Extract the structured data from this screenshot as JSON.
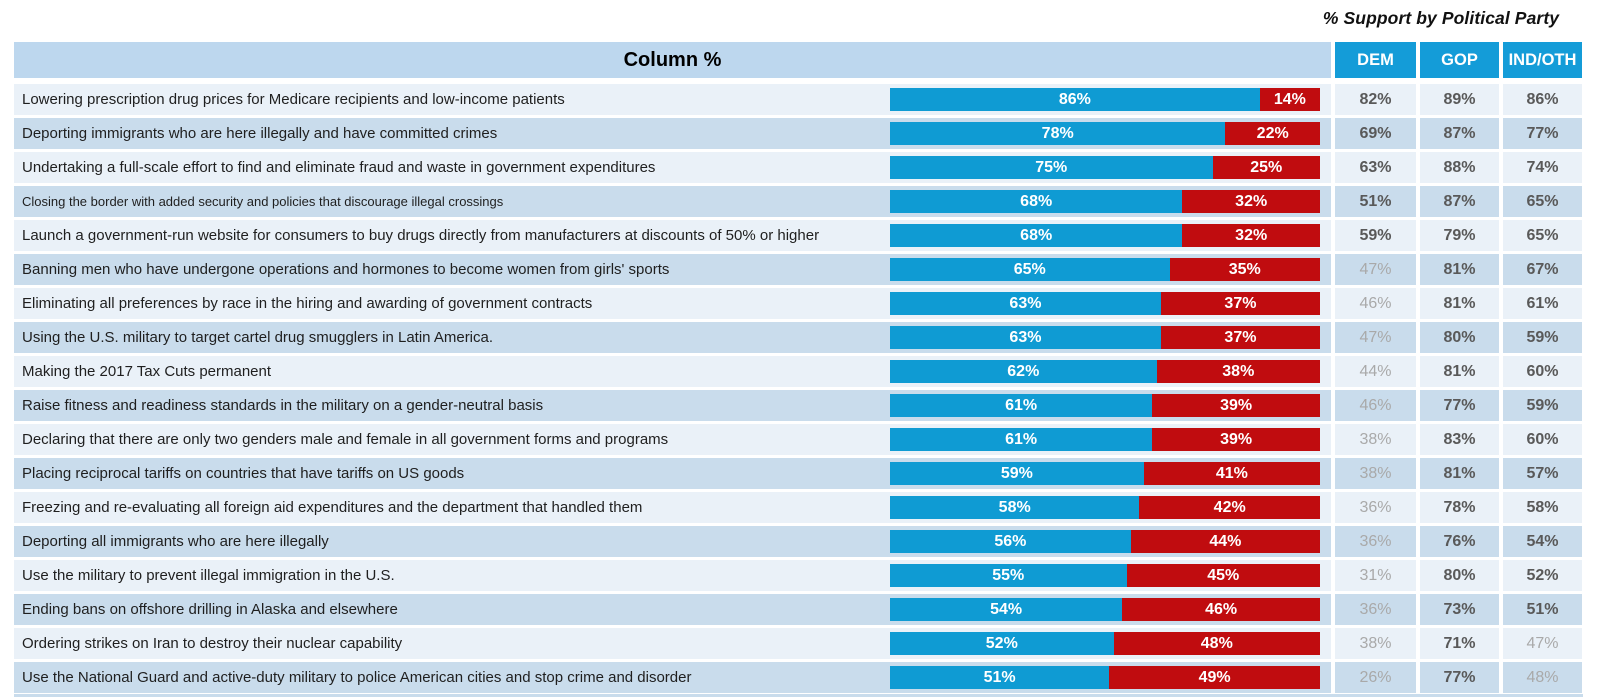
{
  "title": "% Support by Political Party",
  "header": {
    "column_label": "Column %",
    "party_columns": [
      "DEM",
      "GOP",
      "IND/OTH"
    ]
  },
  "colors": {
    "bar_blue": "#0F9BD3",
    "bar_red": "#C00C0F",
    "header_band": "#BDD7EE",
    "party_header_blue": "#149CD8",
    "row_light": "#EAF1F8",
    "row_dark": "#C9DCEC",
    "value_dark": "#595959",
    "value_light": "#A9A9A9"
  },
  "chart_data": {
    "type": "bar",
    "orientation": "horizontal-stacked",
    "title": "% Support by Political Party",
    "column_header": "Column %",
    "value_range": [
      0,
      100
    ],
    "legend_position": "none",
    "grid": false,
    "categories": [
      "Lowering prescription drug prices for Medicare recipients and low-income patients",
      "Deporting immigrants who are here illegally and have committed crimes",
      "Undertaking a full-scale effort to find and eliminate fraud and waste in government expenditures",
      "Closing the border with added security and policies that discourage illegal crossings",
      "Launch a government-run website for consumers to buy drugs directly from manufacturers at discounts of 50% or higher",
      "Banning men who have undergone operations and hormones to become women from girls' sports",
      "Eliminating all preferences by race in the hiring and awarding of government contracts",
      "Using the U.S. military to target cartel drug smugglers in Latin America.",
      "Making the 2017 Tax Cuts permanent",
      "Raise fitness and readiness standards in the military on a gender-neutral basis",
      "Declaring that there are only two genders male and female in all government forms and programs",
      "Placing reciprocal tariffs on countries that have tariffs on US goods",
      "Freezing and re-evaluating all foreign aid expenditures and the department that handled them",
      "Deporting all immigrants who are here illegally",
      "Use the military to prevent illegal immigration in the U.S.",
      "Ending bans on offshore drilling in Alaska and elsewhere",
      "Ordering strikes on Iran to destroy their nuclear capability",
      "Use the National Guard and active-duty military to police American cities and stop crime and disorder"
    ],
    "series": [
      {
        "name": "blue_segment",
        "color": "#0F9BD3",
        "values": [
          86,
          78,
          75,
          68,
          68,
          65,
          63,
          63,
          62,
          61,
          61,
          59,
          58,
          56,
          55,
          54,
          52,
          51
        ]
      },
      {
        "name": "red_segment",
        "color": "#C00C0F",
        "values": [
          14,
          22,
          25,
          32,
          32,
          35,
          37,
          37,
          38,
          39,
          39,
          41,
          42,
          44,
          45,
          46,
          48,
          49
        ]
      }
    ],
    "party_support": {
      "DEM": [
        82,
        69,
        63,
        51,
        59,
        47,
        46,
        47,
        44,
        46,
        38,
        38,
        36,
        36,
        31,
        36,
        38,
        26
      ],
      "GOP": [
        89,
        87,
        88,
        87,
        79,
        81,
        81,
        80,
        81,
        77,
        83,
        81,
        78,
        76,
        80,
        73,
        71,
        77
      ],
      "IND_OTH": [
        86,
        77,
        74,
        65,
        65,
        67,
        61,
        59,
        60,
        59,
        60,
        57,
        58,
        54,
        52,
        51,
        47,
        48
      ]
    }
  }
}
